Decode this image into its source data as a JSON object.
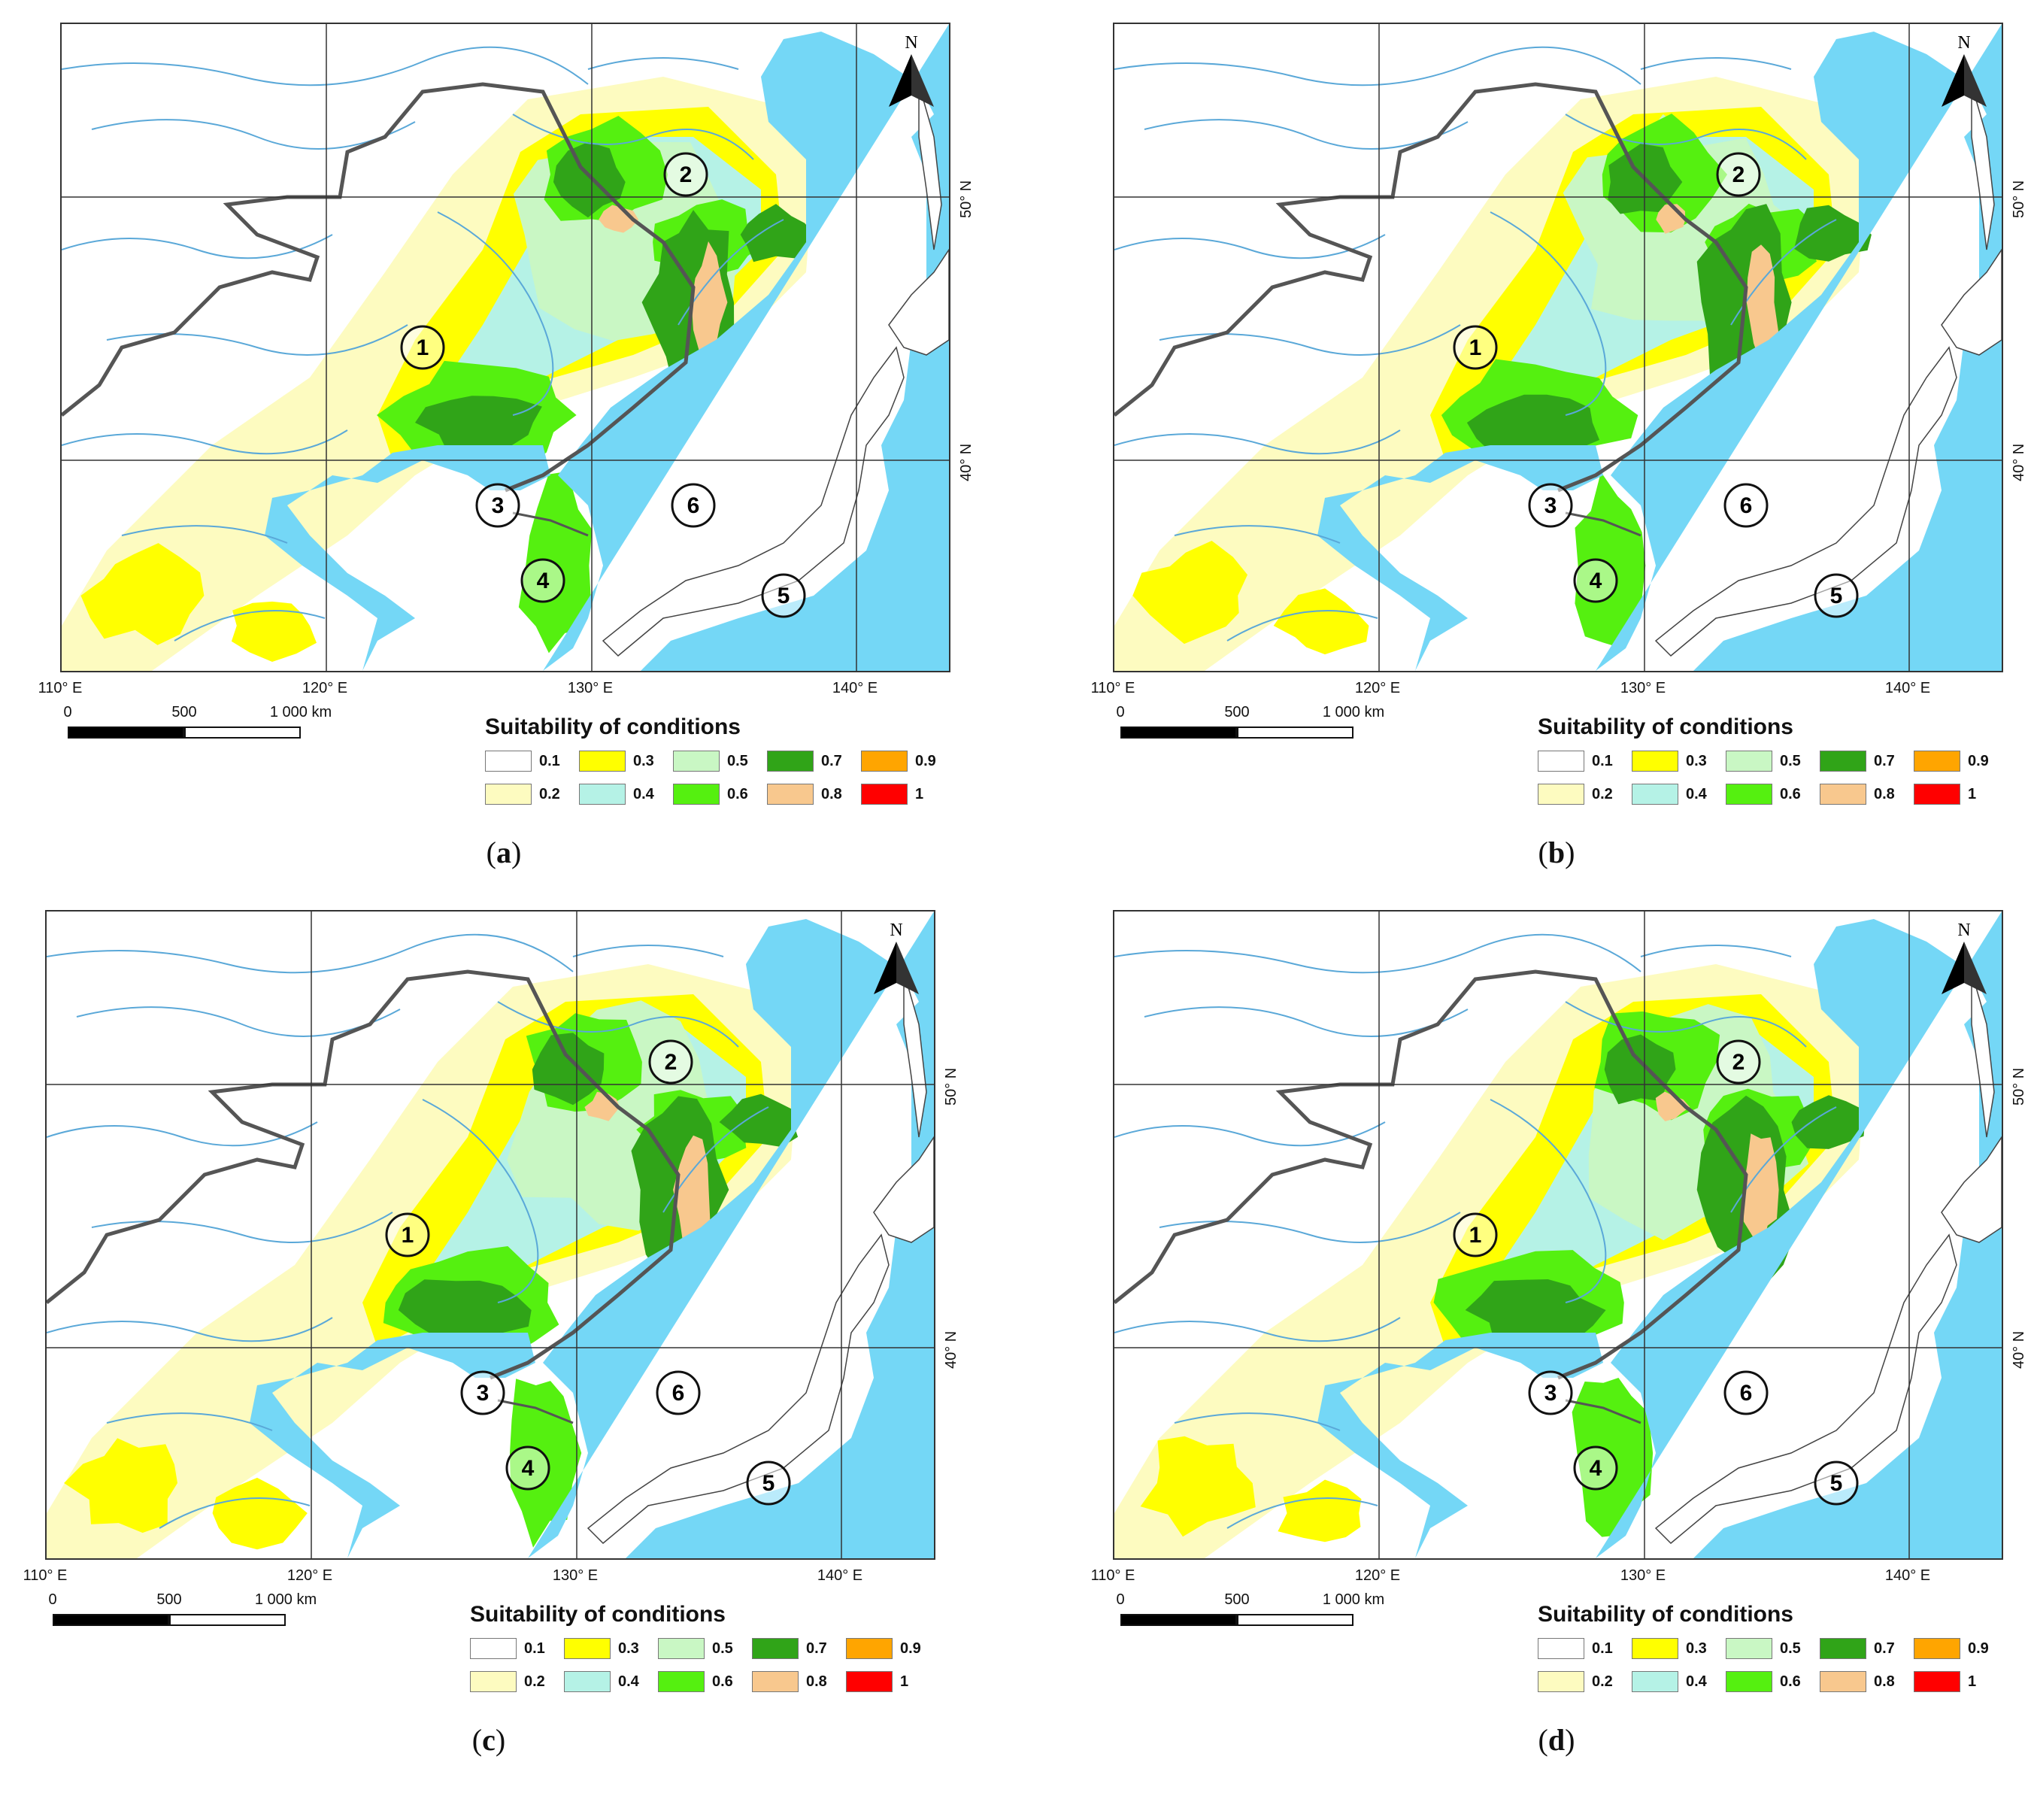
{
  "colors": {
    "sea": "#74d7f6",
    "river": "#5aa8d8",
    "border": "#555555",
    "grid": "#333333",
    "land": "#ffffff"
  },
  "lon_labels": [
    "110° E",
    "120° E",
    "130° E",
    "140° E"
  ],
  "lat_labels": [
    "50° N",
    "40° N"
  ],
  "scale": {
    "labels": [
      "0",
      "500",
      "1 000 km"
    ]
  },
  "legend": {
    "title": "Suitability of conditions",
    "classes": [
      {
        "label": "0.1",
        "color": "#ffffff"
      },
      {
        "label": "0.2",
        "color": "#fdfbc0"
      },
      {
        "label": "0.3",
        "color": "#ffff00"
      },
      {
        "label": "0.4",
        "color": "#b5f2e6"
      },
      {
        "label": "0.5",
        "color": "#c9f7c4"
      },
      {
        "label": "0.6",
        "color": "#55f010"
      },
      {
        "label": "0.7",
        "color": "#30a418"
      },
      {
        "label": "0.8",
        "color": "#f8c88e"
      },
      {
        "label": "0.9",
        "color": "#ffa500"
      },
      {
        "label": "1",
        "color": "#ff0000"
      }
    ]
  },
  "north_label": "N",
  "markers": [
    "1",
    "2",
    "3",
    "4",
    "5",
    "6"
  ],
  "panels": [
    {
      "letter": "a"
    },
    {
      "letter": "b"
    },
    {
      "letter": "c"
    },
    {
      "letter": "d"
    }
  ]
}
